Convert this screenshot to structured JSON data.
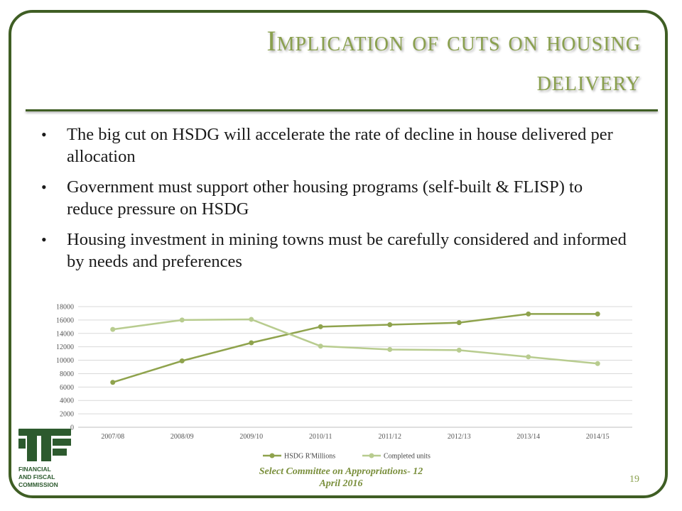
{
  "slide": {
    "title_line1": "Implication of cuts on housing",
    "title_line2": "delivery",
    "bullets": [
      "The big cut on HSDG will accelerate the rate of decline in house delivered per allocation",
      "Government must support other housing programs (self-built & FLISP) to reduce pressure on HSDG",
      "Housing investment in mining towns must be carefully considered and informed by needs and preferences"
    ],
    "bullet_symbol": "•",
    "footer_line1": "Select Committee on Appropriations- 12",
    "footer_line2": "April 2016",
    "page_number": "19",
    "logo": {
      "org_line1": "FINANCIAL",
      "org_line2": "AND FISCAL",
      "org_line3": "COMMISSION"
    },
    "colors": {
      "frame": "#3f5e24",
      "title": "#8aa04e",
      "series_dark": "#8fa34d",
      "series_light": "#b8cc8f",
      "logo": "#2d5a2e"
    }
  },
  "chart_data": {
    "type": "line",
    "categories": [
      "2007/08",
      "2008/09",
      "2009/10",
      "2010/11",
      "2011/12",
      "2012/13",
      "2013/14",
      "2014/15"
    ],
    "series": [
      {
        "name": "HSDG R'Millions",
        "values": [
          6700,
          9900,
          12600,
          15000,
          15300,
          15600,
          16900,
          16900
        ]
      },
      {
        "name": "Completed units",
        "values": [
          14600,
          16000,
          16100,
          12100,
          11600,
          11500,
          10500,
          9500
        ]
      }
    ],
    "yticks": [
      "0",
      "2000",
      "4000",
      "6000",
      "8000",
      "10000",
      "12000",
      "14000",
      "16000",
      "18000"
    ],
    "ylim": [
      0,
      18000
    ],
    "grid": true,
    "legend": "bottom"
  }
}
